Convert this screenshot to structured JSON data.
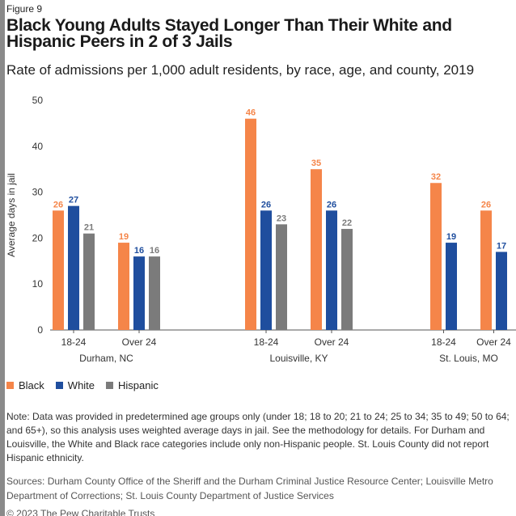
{
  "figure_label": "Figure 9",
  "title": "Black Young Adults Stayed Longer Than Their White and Hispanic Peers in 2 of 3 Jails",
  "subtitle": "Rate of admissions per 1,000 adult residents, by race, age, and county, 2019",
  "note": "Note: Data was provided in predetermined age groups only (under 18; 18 to 20; 21 to 24; 25 to 34; 35 to 49; 50 to 64; and 65+), so this analysis uses weighted average days in jail. See the methodology for details. For Durham and Louisville, the White and Black race categories include only non-Hispanic people. St. Louis County did not report Hispanic ethnicity.",
  "sources": "Sources: Durham County Office of the Sheriff and the Durham Criminal Justice Resource Center; Louisville Metro Department of Corrections; St. Louis County Department of Justice Services",
  "copyright": "© 2023 The Pew Charitable Trusts",
  "colors": {
    "black": "#f58549",
    "white": "#1f4e9e",
    "hispanic": "#7b7b7b",
    "axis": "#555555"
  },
  "chart_data": {
    "type": "bar",
    "ylabel": "Average days in jail",
    "ylim": [
      0,
      50
    ],
    "yticks": [
      0,
      10,
      20,
      30,
      40,
      50
    ],
    "legend": [
      {
        "name": "Black",
        "color": "#f58549"
      },
      {
        "name": "White",
        "color": "#1f4e9e"
      },
      {
        "name": "Hispanic",
        "color": "#7b7b7b"
      }
    ],
    "groups": [
      {
        "county": "Durham, NC",
        "categories": [
          {
            "label": "18-24",
            "values": {
              "Black": 26,
              "White": 27,
              "Hispanic": 21
            }
          },
          {
            "label": "Over 24",
            "values": {
              "Black": 19,
              "White": 16,
              "Hispanic": 16
            }
          }
        ]
      },
      {
        "county": "Louisville, KY",
        "categories": [
          {
            "label": "18-24",
            "values": {
              "Black": 46,
              "White": 26,
              "Hispanic": 23
            }
          },
          {
            "label": "Over 24",
            "values": {
              "Black": 35,
              "White": 26,
              "Hispanic": 22
            }
          }
        ]
      },
      {
        "county": "St. Louis, MO",
        "categories": [
          {
            "label": "18-24",
            "values": {
              "Black": 32,
              "White": 19
            }
          },
          {
            "label": "Over 24",
            "values": {
              "Black": 26,
              "White": 17
            }
          }
        ]
      }
    ]
  }
}
